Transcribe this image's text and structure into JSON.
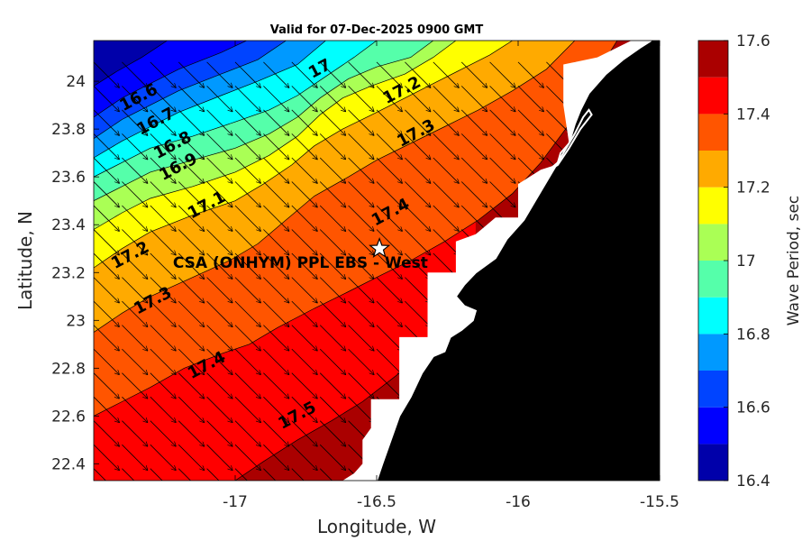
{
  "chart_data": {
    "type": "heatmap",
    "title": "Valid for 07-Dec-2025 0900 GMT",
    "xlabel": "Longitude, W",
    "ylabel": "Latitude, N",
    "colorbar_label": "Wave Period, sec",
    "xlim": [
      -17.5,
      -15.5
    ],
    "ylim": [
      22.33,
      24.17
    ],
    "x_ticks": [
      -17,
      -16.5,
      -16,
      -15.5
    ],
    "y_ticks": [
      22.4,
      22.6,
      22.8,
      23,
      23.2,
      23.4,
      23.6,
      23.8,
      24
    ],
    "colorbar": {
      "levels": [
        16.4,
        16.5,
        16.6,
        16.7,
        16.8,
        16.9,
        17.0,
        17.1,
        17.2,
        17.3,
        17.4,
        17.5,
        17.6
      ],
      "tick_labels": [
        "16.4",
        "16.6",
        "16.8",
        "17",
        "17.2",
        "17.4",
        "17.6"
      ],
      "tick_values": [
        16.4,
        16.6,
        16.8,
        17.0,
        17.2,
        17.4,
        17.6
      ],
      "colors": [
        "#0000aa",
        "#0000ff",
        "#0044ff",
        "#0099ff",
        "#00ffff",
        "#55ffaa",
        "#aaff55",
        "#ffff00",
        "#ffaa00",
        "#ff5500",
        "#ff0000",
        "#aa0000"
      ]
    },
    "contours": [
      {
        "value": 16.5,
        "points": [
          [
            -17.5,
            23.98
          ],
          [
            -17.42,
            24.04
          ],
          [
            -17.33,
            24.1
          ],
          [
            -17.24,
            24.17
          ]
        ]
      },
      {
        "value": 16.6,
        "points": [
          [
            -17.5,
            23.85
          ],
          [
            -17.4,
            23.93
          ],
          [
            -17.3,
            23.99
          ],
          [
            -17.2,
            24.05
          ],
          [
            -17.05,
            24.12
          ],
          [
            -16.96,
            24.17
          ]
        ]
      },
      {
        "value": 16.7,
        "points": [
          [
            -17.5,
            23.76
          ],
          [
            -17.4,
            23.84
          ],
          [
            -17.3,
            23.9
          ],
          [
            -17.2,
            23.96
          ],
          [
            -17.05,
            24.03
          ],
          [
            -16.92,
            24.09
          ],
          [
            -16.82,
            24.17
          ]
        ]
      },
      {
        "value": 16.8,
        "points": [
          [
            -17.5,
            23.68
          ],
          [
            -17.4,
            23.75
          ],
          [
            -17.3,
            23.81
          ],
          [
            -17.2,
            23.87
          ],
          [
            -17.05,
            23.94
          ],
          [
            -16.92,
            24.0
          ],
          [
            -16.78,
            24.07
          ],
          [
            -16.68,
            24.17
          ]
        ]
      },
      {
        "value": 16.9,
        "points": [
          [
            -17.5,
            23.6
          ],
          [
            -17.4,
            23.66
          ],
          [
            -17.3,
            23.72
          ],
          [
            -17.15,
            23.77
          ],
          [
            -17.0,
            23.83
          ],
          [
            -16.88,
            23.88
          ],
          [
            -16.78,
            23.94
          ],
          [
            -16.68,
            24.02
          ],
          [
            -16.58,
            24.1
          ],
          [
            -16.5,
            24.17
          ]
        ]
      },
      {
        "value": 17.0,
        "points": [
          [
            -17.5,
            23.5
          ],
          [
            -17.4,
            23.56
          ],
          [
            -17.3,
            23.62
          ],
          [
            -17.15,
            23.67
          ],
          [
            -17.0,
            23.72
          ],
          [
            -16.88,
            23.78
          ],
          [
            -16.78,
            23.85
          ],
          [
            -16.7,
            23.93
          ],
          [
            -16.6,
            24.01
          ],
          [
            -16.5,
            24.06
          ],
          [
            -16.38,
            24.1
          ],
          [
            -16.3,
            24.17
          ]
        ]
      },
      {
        "value": 17.1,
        "points": [
          [
            -17.5,
            23.38
          ],
          [
            -17.4,
            23.45
          ],
          [
            -17.3,
            23.51
          ],
          [
            -17.15,
            23.56
          ],
          [
            -17.0,
            23.62
          ],
          [
            -16.88,
            23.69
          ],
          [
            -16.78,
            23.77
          ],
          [
            -16.7,
            23.86
          ],
          [
            -16.62,
            23.93
          ],
          [
            -16.52,
            23.98
          ],
          [
            -16.4,
            24.03
          ],
          [
            -16.3,
            24.1
          ],
          [
            -16.22,
            24.17
          ]
        ]
      },
      {
        "value": 17.2,
        "points": [
          [
            -17.5,
            23.22
          ],
          [
            -17.4,
            23.3
          ],
          [
            -17.3,
            23.37
          ],
          [
            -17.15,
            23.44
          ],
          [
            -17.0,
            23.5
          ],
          [
            -16.9,
            23.57
          ],
          [
            -16.8,
            23.65
          ],
          [
            -16.72,
            23.73
          ],
          [
            -16.62,
            23.8
          ],
          [
            -16.5,
            23.87
          ],
          [
            -16.4,
            23.93
          ],
          [
            -16.3,
            23.99
          ],
          [
            -16.2,
            24.05
          ],
          [
            -16.1,
            24.11
          ],
          [
            -16.02,
            24.17
          ]
        ]
      },
      {
        "value": 17.3,
        "points": [
          [
            -17.5,
            22.95
          ],
          [
            -17.4,
            23.03
          ],
          [
            -17.3,
            23.1
          ],
          [
            -17.15,
            23.18
          ],
          [
            -17.02,
            23.25
          ],
          [
            -16.92,
            23.32
          ],
          [
            -16.82,
            23.42
          ],
          [
            -16.72,
            23.52
          ],
          [
            -16.6,
            23.6
          ],
          [
            -16.5,
            23.67
          ],
          [
            -16.38,
            23.74
          ],
          [
            -16.26,
            23.81
          ],
          [
            -16.14,
            23.88
          ],
          [
            -16.02,
            23.96
          ],
          [
            -15.9,
            24.05
          ],
          [
            -15.8,
            24.17
          ]
        ]
      },
      {
        "value": 17.4,
        "points": [
          [
            -17.5,
            22.6
          ],
          [
            -17.4,
            22.66
          ],
          [
            -17.3,
            22.72
          ],
          [
            -17.18,
            22.8
          ],
          [
            -17.05,
            22.86
          ],
          [
            -16.95,
            22.9
          ],
          [
            -16.85,
            22.97
          ],
          [
            -16.72,
            23.05
          ],
          [
            -16.6,
            23.12
          ],
          [
            -16.5,
            23.18
          ],
          [
            -16.38,
            23.25
          ],
          [
            -16.26,
            23.33
          ],
          [
            -16.14,
            23.42
          ],
          [
            -16.02,
            23.53
          ],
          [
            -15.92,
            23.66
          ],
          [
            -15.82,
            23.82
          ],
          [
            -15.74,
            24.0
          ],
          [
            -15.65,
            24.17
          ]
        ]
      },
      {
        "value": 17.5,
        "points": [
          [
            -17.0,
            22.33
          ],
          [
            -16.9,
            22.41
          ],
          [
            -16.78,
            22.5
          ],
          [
            -16.66,
            22.58
          ],
          [
            -16.55,
            22.66
          ],
          [
            -16.43,
            22.77
          ],
          [
            -16.32,
            22.88
          ],
          [
            -16.22,
            22.98
          ],
          [
            -16.15,
            23.06
          ]
        ]
      }
    ],
    "contour_labels": [
      {
        "text": "16.6",
        "lon": -17.34,
        "lat": 23.93
      },
      {
        "text": "16.7",
        "lon": -17.28,
        "lat": 23.83
      },
      {
        "text": "16.8",
        "lon": -17.22,
        "lat": 23.73
      },
      {
        "text": "16.9",
        "lon": -17.2,
        "lat": 23.64
      },
      {
        "text": "17",
        "lon": -16.7,
        "lat": 24.05
      },
      {
        "text": "17.1",
        "lon": -17.1,
        "lat": 23.48
      },
      {
        "text": "17.2",
        "lon": -17.37,
        "lat": 23.27
      },
      {
        "text": "17.2",
        "lon": -16.41,
        "lat": 23.96
      },
      {
        "text": "17.3",
        "lon": -17.29,
        "lat": 23.08
      },
      {
        "text": "17.3",
        "lon": -16.36,
        "lat": 23.78
      },
      {
        "text": "17.4",
        "lon": -17.1,
        "lat": 22.81
      },
      {
        "text": "17.4",
        "lon": -16.45,
        "lat": 23.45
      },
      {
        "text": "17.5",
        "lon": -16.78,
        "lat": 22.6
      }
    ],
    "coast": [
      [
        -15.5,
        24.17
      ],
      [
        -15.5,
        22.33
      ],
      [
        -16.5,
        22.33
      ],
      [
        -16.48,
        22.4
      ],
      [
        -16.45,
        22.5
      ],
      [
        -16.42,
        22.6
      ],
      [
        -16.38,
        22.68
      ],
      [
        -16.34,
        22.78
      ],
      [
        -16.3,
        22.85
      ],
      [
        -16.26,
        22.87
      ],
      [
        -16.24,
        22.93
      ],
      [
        -16.2,
        22.96
      ],
      [
        -16.16,
        23.0
      ],
      [
        -16.15,
        23.04
      ],
      [
        -16.19,
        23.06
      ],
      [
        -16.22,
        23.1
      ],
      [
        -16.19,
        23.15
      ],
      [
        -16.15,
        23.2
      ],
      [
        -16.08,
        23.26
      ],
      [
        -16.04,
        23.34
      ],
      [
        -15.98,
        23.42
      ],
      [
        -15.94,
        23.5
      ],
      [
        -15.9,
        23.58
      ],
      [
        -15.86,
        23.66
      ],
      [
        -15.82,
        23.74
      ],
      [
        -15.8,
        23.82
      ],
      [
        -15.78,
        23.88
      ],
      [
        -15.75,
        23.95
      ],
      [
        -15.69,
        24.03
      ],
      [
        -15.63,
        24.09
      ],
      [
        -15.57,
        24.14
      ],
      [
        -15.53,
        24.17
      ]
    ],
    "sea_edge": [
      [
        -15.5,
        24.17
      ],
      [
        -15.53,
        24.17
      ],
      [
        -15.57,
        24.14
      ],
      [
        -15.63,
        24.09
      ],
      [
        -15.69,
        24.03
      ],
      [
        -15.75,
        23.95
      ],
      [
        -15.78,
        23.88
      ],
      [
        -15.8,
        23.82
      ],
      [
        -15.82,
        23.74
      ],
      [
        -15.86,
        23.66
      ],
      [
        -15.9,
        23.58
      ],
      [
        -15.94,
        23.5
      ],
      [
        -15.98,
        23.42
      ],
      [
        -16.04,
        23.34
      ],
      [
        -16.08,
        23.26
      ],
      [
        -16.15,
        23.2
      ],
      [
        -16.19,
        23.15
      ],
      [
        -16.22,
        23.1
      ],
      [
        -16.19,
        23.06
      ],
      [
        -16.15,
        23.04
      ],
      [
        -16.16,
        23.0
      ],
      [
        -16.2,
        22.96
      ],
      [
        -16.24,
        22.93
      ],
      [
        -16.26,
        22.87
      ],
      [
        -16.3,
        22.85
      ],
      [
        -16.34,
        22.78
      ],
      [
        -16.38,
        22.68
      ],
      [
        -16.42,
        22.6
      ],
      [
        -16.45,
        22.5
      ],
      [
        -16.48,
        22.4
      ],
      [
        -16.5,
        22.33
      ],
      [
        -16.62,
        22.33
      ],
      [
        -16.58,
        22.36
      ],
      [
        -16.55,
        22.4
      ],
      [
        -16.55,
        22.5
      ],
      [
        -16.52,
        22.55
      ],
      [
        -16.52,
        22.67
      ],
      [
        -16.42,
        22.67
      ],
      [
        -16.42,
        22.93
      ],
      [
        -16.32,
        22.93
      ],
      [
        -16.32,
        23.2
      ],
      [
        -16.22,
        23.2
      ],
      [
        -16.22,
        23.33
      ],
      [
        -16.15,
        23.36
      ],
      [
        -16.08,
        23.43
      ],
      [
        -16.0,
        23.43
      ],
      [
        -16.0,
        23.57
      ],
      [
        -15.92,
        23.63
      ],
      [
        -15.84,
        23.66
      ],
      [
        -15.82,
        23.74
      ],
      [
        -15.84,
        23.9
      ],
      [
        -15.84,
        24.07
      ],
      [
        -15.72,
        24.1
      ],
      [
        -15.6,
        24.17
      ]
    ],
    "inlet": [
      [
        -15.9,
        23.62
      ],
      [
        -15.86,
        23.66
      ],
      [
        -15.85,
        23.7
      ],
      [
        -15.82,
        23.74
      ],
      [
        -15.8,
        23.78
      ],
      [
        -15.77,
        23.85
      ],
      [
        -15.75,
        23.88
      ],
      [
        -15.74,
        23.86
      ],
      [
        -15.78,
        23.8
      ],
      [
        -15.82,
        23.72
      ],
      [
        -15.86,
        23.65
      ],
      [
        -15.9,
        23.62
      ]
    ],
    "vectors": {
      "lon_start": -17.5,
      "lon_step": 0.1,
      "lon_count": 20,
      "lat_start": 22.38,
      "lat_step": 0.1,
      "lat_count": 18,
      "u": 1.0,
      "v": -1.0
    },
    "station_marker": {
      "label": "CSA (ONHYM) PPL EBS - West",
      "lon": -16.49,
      "lat": 23.3
    },
    "station_label_position": {
      "lon": -17.22,
      "lat": 23.22
    }
  }
}
